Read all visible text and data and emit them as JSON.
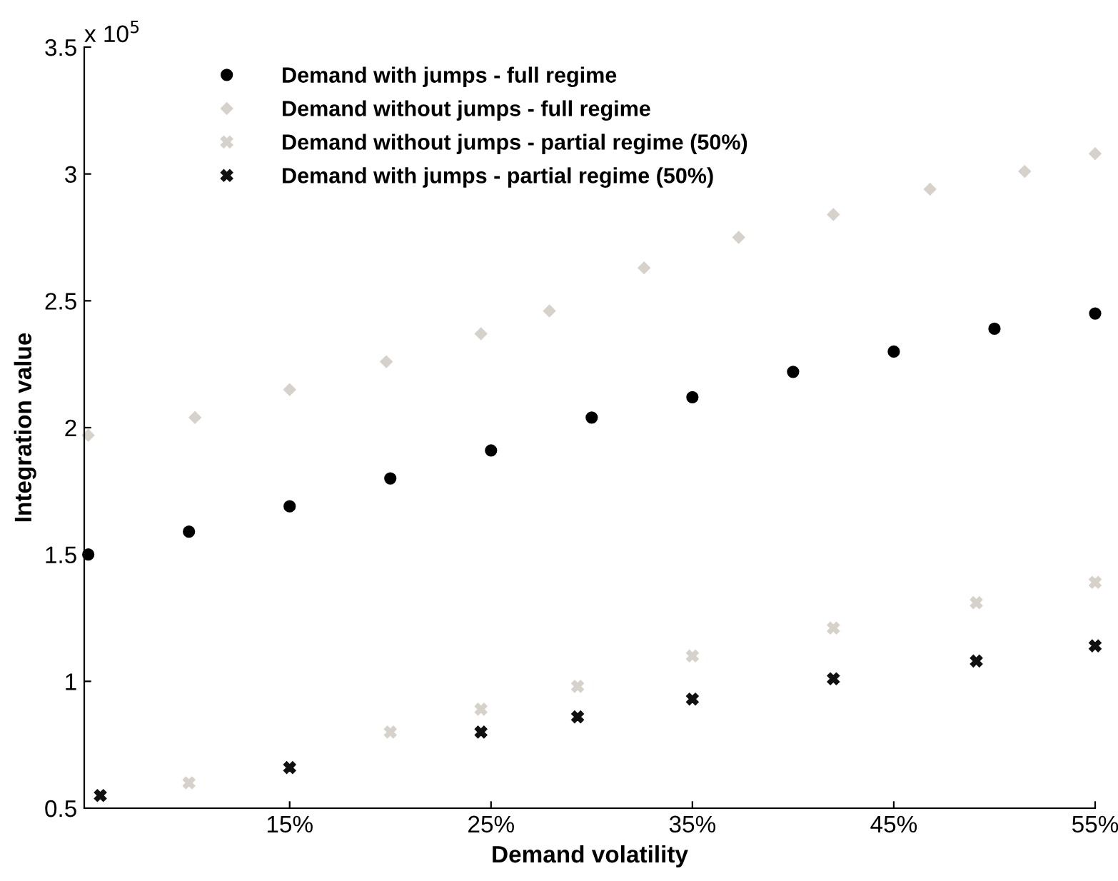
{
  "chart_data": {
    "type": "scatter",
    "xlabel": "Demand volatility",
    "ylabel": "Integration value",
    "annotations": [
      "x 10$^{5}$"
    ],
    "xlim": [
      4.8,
      55
    ],
    "xticks": [
      {
        "value": 15,
        "label": "15%"
      },
      {
        "value": 25,
        "label": "25%"
      },
      {
        "value": 35,
        "label": "35%"
      },
      {
        "value": 45,
        "label": "45%"
      },
      {
        "value": 55,
        "label": "55%"
      }
    ],
    "ylim": [
      0.5,
      3.5
    ],
    "yticks": [
      0.5,
      1,
      1.5,
      2,
      2.5,
      3,
      3.5
    ],
    "grid": false,
    "legend": "top left",
    "series": [
      {
        "name": "Demand with jumps - full regime",
        "color": "#000000",
        "marker": "circle",
        "x": [
          5,
          10,
          15,
          20,
          25,
          30,
          35,
          40,
          45,
          50,
          55
        ],
        "values": [
          1.5,
          1.59,
          1.69,
          1.8,
          1.91,
          2.04,
          2.12,
          2.22,
          2.3,
          2.39,
          2.45
        ]
      },
      {
        "name": "Demand without jumps - full regime",
        "color": "#d6d2cb",
        "marker": "diamond",
        "x": [
          5,
          10.3,
          15,
          19.8,
          24.5,
          27.9,
          32.6,
          37.3,
          42,
          46.8,
          51.5,
          55
        ],
        "values": [
          1.97,
          2.04,
          2.15,
          2.26,
          2.37,
          2.46,
          2.63,
          2.75,
          2.84,
          2.94,
          3.01,
          3.08
        ]
      },
      {
        "name": "Demand without jumps - partial regime (50%)",
        "color": "#d6d2cb",
        "marker": "cross",
        "x": [
          10,
          20,
          24.5,
          29.3,
          35,
          42,
          49.1,
          55
        ],
        "values": [
          0.6,
          0.8,
          0.89,
          0.98,
          1.1,
          1.21,
          1.31,
          1.39
        ]
      },
      {
        "name": "Demand with jumps - partial regime (50%)",
        "color": "#111111",
        "marker": "cross",
        "x": [
          5.6,
          15,
          24.5,
          29.3,
          35,
          42,
          49.1,
          55
        ],
        "values": [
          0.55,
          0.66,
          0.8,
          0.86,
          0.93,
          1.01,
          1.08,
          1.14
        ]
      }
    ]
  }
}
